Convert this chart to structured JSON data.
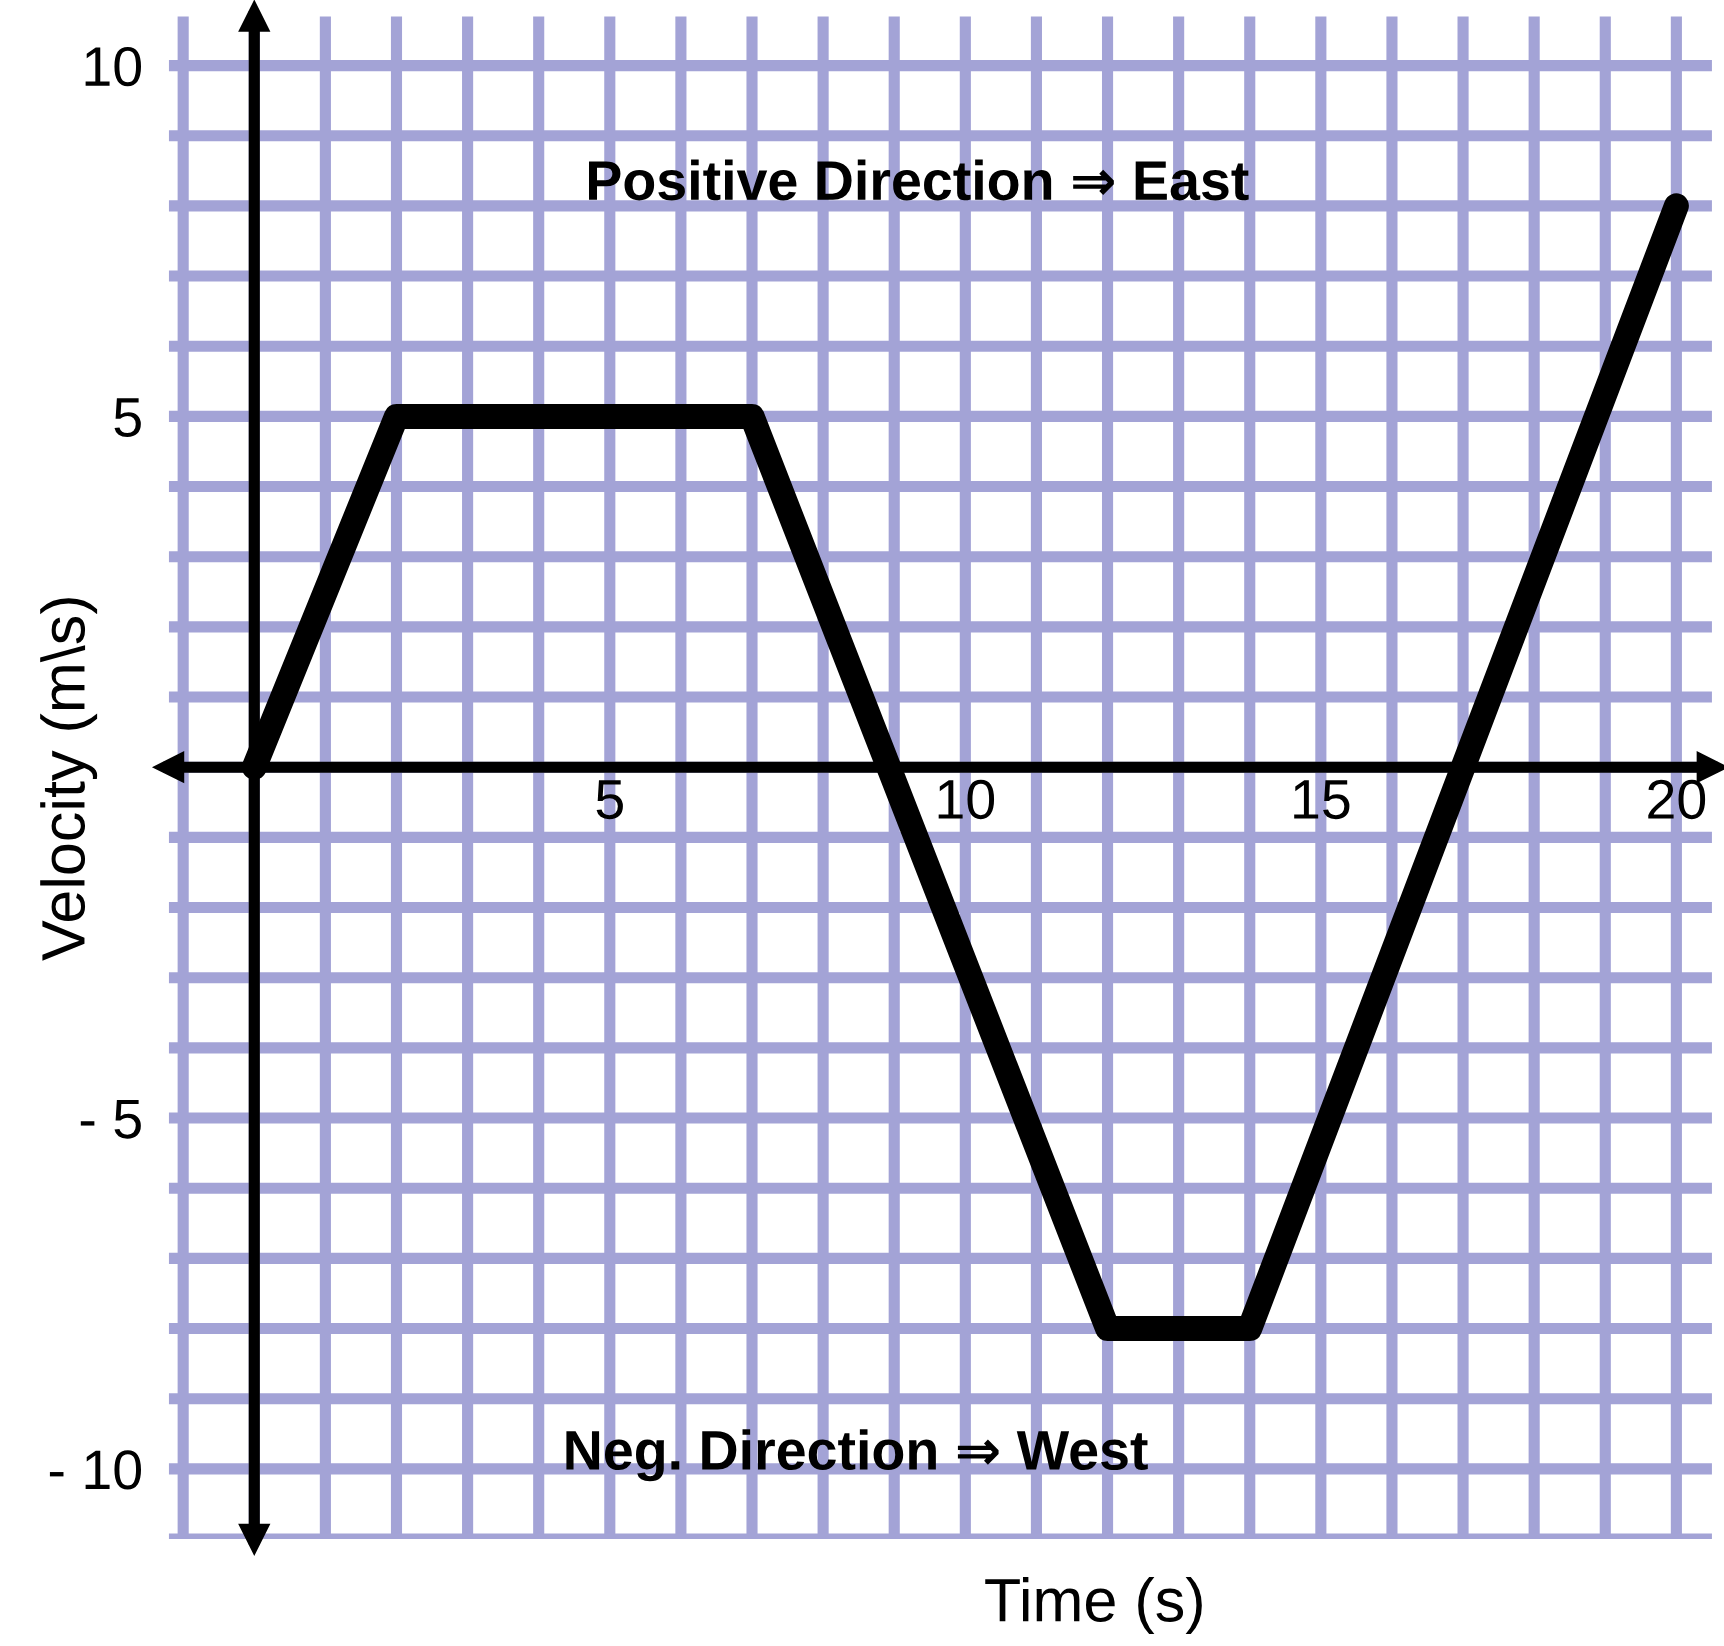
{
  "chart_data": {
    "type": "line",
    "xlabel": "Time (s)",
    "ylabel": "Velocity (m\\s)",
    "x": [
      0,
      2,
      7,
      12,
      14,
      20
    ],
    "series": [
      {
        "color": "#000000",
        "values": [
          0,
          5,
          5,
          -8,
          -8,
          8
        ]
      }
    ],
    "xlim": [
      -1.2,
      20.5
    ],
    "ylim": [
      -11,
      10.7
    ],
    "xticks": [
      5,
      10,
      15,
      20
    ],
    "yticks": [
      10,
      5,
      {
        "value": -5,
        "label": "- 5"
      },
      {
        "value": -10,
        "label": "- 10"
      }
    ],
    "grid": true,
    "line_style": "solid",
    "annotations": [
      "Positive Direction ⇒ East",
      "Neg. Direction ⇒ West"
    ]
  }
}
